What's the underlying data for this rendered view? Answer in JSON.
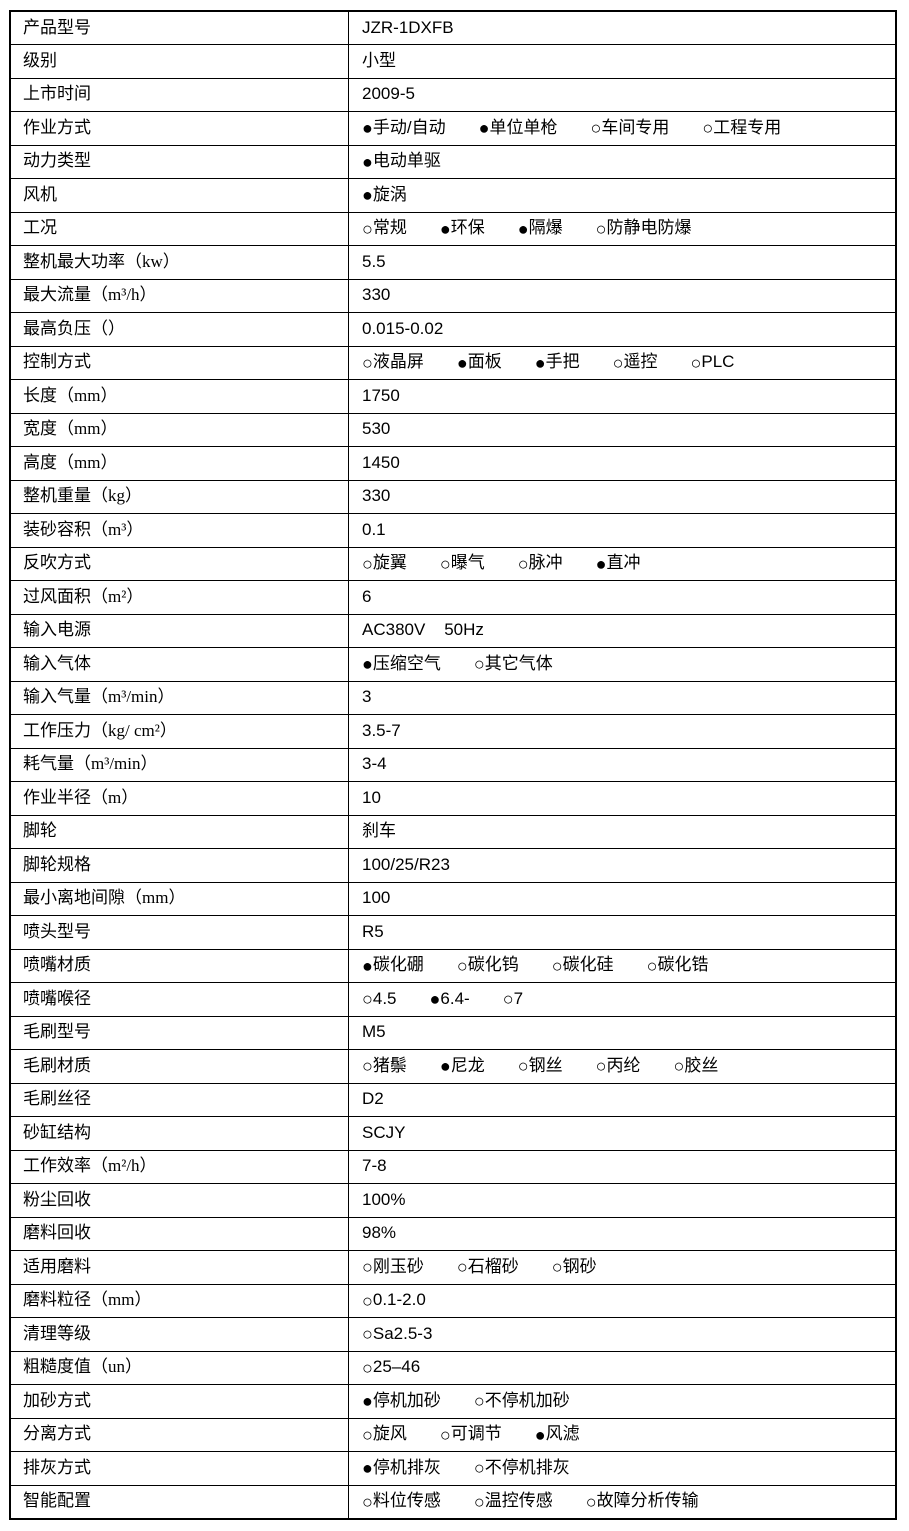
{
  "colors": {
    "background": "#ffffff",
    "border": "#000000",
    "text": "#000000"
  },
  "glyphs": {
    "radio_selected": "●",
    "radio_unselected": "○"
  },
  "table": {
    "rows": [
      {
        "label": "产品型号",
        "value": "JZR-1DXFB"
      },
      {
        "label": "级别",
        "value": "小型"
      },
      {
        "label": "上市时间",
        "value": "2009-5"
      },
      {
        "label": "作业方式",
        "options": [
          {
            "text": "手动/自动",
            "selected": true
          },
          {
            "text": "单位单枪",
            "selected": true
          },
          {
            "text": "车间专用",
            "selected": false
          },
          {
            "text": "工程专用",
            "selected": false
          }
        ]
      },
      {
        "label": "动力类型",
        "options": [
          {
            "text": "电动单驱",
            "selected": true
          }
        ]
      },
      {
        "label": "风机",
        "options": [
          {
            "text": "旋涡",
            "selected": true
          }
        ]
      },
      {
        "label": "工况",
        "options": [
          {
            "text": "常规",
            "selected": false
          },
          {
            "text": "环保",
            "selected": true
          },
          {
            "text": "隔爆",
            "selected": true
          },
          {
            "text": "防静电防爆",
            "selected": false
          }
        ]
      },
      {
        "label": "整机最大功率（kw）",
        "value": "5.5"
      },
      {
        "label": "最大流量（m³/h）",
        "value": "330"
      },
      {
        "label": "最高负压（）",
        "value": "0.015-0.02"
      },
      {
        "label": "控制方式",
        "options": [
          {
            "text": "液晶屏",
            "selected": false
          },
          {
            "text": "面板",
            "selected": true
          },
          {
            "text": "手把",
            "selected": true
          },
          {
            "text": "遥控",
            "selected": false
          },
          {
            "text": "PLC",
            "selected": false
          }
        ]
      },
      {
        "label": "长度（mm）",
        "value": "1750"
      },
      {
        "label": "宽度（mm）",
        "value": "530"
      },
      {
        "label": "高度（mm）",
        "value": "1450"
      },
      {
        "label": "整机重量（kg）",
        "value": "330"
      },
      {
        "label": "装砂容积（m³）",
        "value": "0.1"
      },
      {
        "label": "反吹方式",
        "options": [
          {
            "text": "旋翼",
            "selected": false
          },
          {
            "text": "曝气",
            "selected": false
          },
          {
            "text": "脉冲",
            "selected": false
          },
          {
            "text": "直冲",
            "selected": true
          }
        ]
      },
      {
        "label": "过风面积（m²）",
        "value": "6"
      },
      {
        "label": "输入电源",
        "value": "AC380V    50Hz"
      },
      {
        "label": "输入气体",
        "options": [
          {
            "text": "压缩空气",
            "selected": true
          },
          {
            "text": "其它气体",
            "selected": false
          }
        ]
      },
      {
        "label": "输入气量（m³/min）",
        "value": "3"
      },
      {
        "label": "工作压力（kg/ cm²）",
        "value": "3.5-7"
      },
      {
        "label": "耗气量（m³/min）",
        "value": "3-4"
      },
      {
        "label": "作业半径（m）",
        "value": "10"
      },
      {
        "label": "脚轮",
        "value": "刹车"
      },
      {
        "label": "脚轮规格",
        "value": "100/25/R23"
      },
      {
        "label": "最小离地间隙（mm）",
        "value": "100"
      },
      {
        "label": "喷头型号",
        "value": "R5"
      },
      {
        "label": "喷嘴材质",
        "options": [
          {
            "text": "碳化硼",
            "selected": true
          },
          {
            "text": "碳化钨",
            "selected": false
          },
          {
            "text": "碳化硅",
            "selected": false
          },
          {
            "text": "碳化锆",
            "selected": false
          }
        ]
      },
      {
        "label": "喷嘴喉径",
        "options": [
          {
            "text": "4.5",
            "selected": false
          },
          {
            "text": "6.4-",
            "selected": true
          },
          {
            "text": "7",
            "selected": false
          }
        ]
      },
      {
        "label": "毛刷型号",
        "value": "M5"
      },
      {
        "label": "毛刷材质",
        "options": [
          {
            "text": "猪鬃",
            "selected": false
          },
          {
            "text": "尼龙",
            "selected": true
          },
          {
            "text": "钢丝",
            "selected": false
          },
          {
            "text": "丙纶",
            "selected": false
          },
          {
            "text": "胶丝",
            "selected": false
          }
        ]
      },
      {
        "label": "毛刷丝径",
        "value": "D2"
      },
      {
        "label": "砂缸结构",
        "value": "SCJY"
      },
      {
        "label": "工作效率（m²/h）",
        "value": "7-8"
      },
      {
        "label": "粉尘回收",
        "value": "100%"
      },
      {
        "label": "磨料回收",
        "value": "98%"
      },
      {
        "label": "适用磨料",
        "options": [
          {
            "text": "刚玉砂",
            "selected": false
          },
          {
            "text": "石榴砂",
            "selected": false
          },
          {
            "text": "钢砂",
            "selected": false
          }
        ]
      },
      {
        "label": "磨料粒径（mm）",
        "options": [
          {
            "text": "0.1-2.0",
            "selected": false
          }
        ]
      },
      {
        "label": "清理等级",
        "options": [
          {
            "text": "Sa2.5-3",
            "selected": false
          }
        ]
      },
      {
        "label": "粗糙度值（un）",
        "options": [
          {
            "text": "25–46",
            "selected": false
          }
        ]
      },
      {
        "label": "加砂方式",
        "options": [
          {
            "text": "停机加砂",
            "selected": true
          },
          {
            "text": "不停机加砂",
            "selected": false
          }
        ]
      },
      {
        "label": "分离方式",
        "options": [
          {
            "text": "旋风",
            "selected": false
          },
          {
            "text": "可调节",
            "selected": false
          },
          {
            "text": "风滤",
            "selected": true
          }
        ]
      },
      {
        "label": "排灰方式",
        "options": [
          {
            "text": "停机排灰",
            "selected": true
          },
          {
            "text": "不停机排灰",
            "selected": false
          }
        ]
      },
      {
        "label": "智能配置",
        "options": [
          {
            "text": "料位传感",
            "selected": false
          },
          {
            "text": "温控传感",
            "selected": false
          },
          {
            "text": "故障分析传输",
            "selected": false
          }
        ]
      }
    ]
  }
}
